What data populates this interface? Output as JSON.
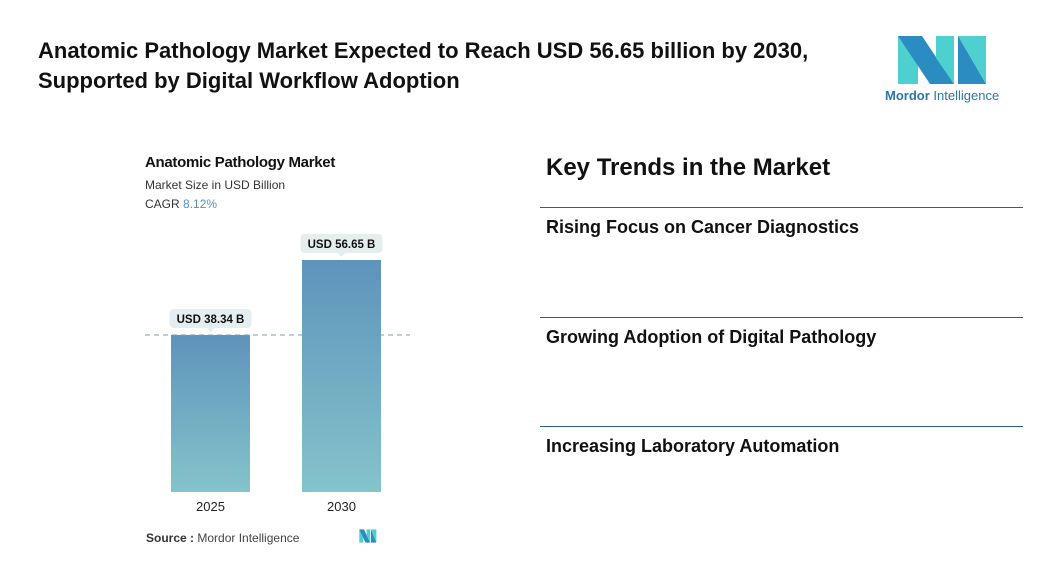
{
  "headline": "Anatomic Pathology Market Expected to Reach USD 56.65 billion by 2030, Supported by Digital Workflow Adoption",
  "logo": {
    "brand": "Mordor",
    "brand2": "Intelligence",
    "colors": [
      "#2a8cc0",
      "#4ecfd0"
    ]
  },
  "chart_data": {
    "type": "bar",
    "title": "Anatomic Pathology Market",
    "subtitle": "Market Size in USD Billion",
    "cagr_label": "CAGR",
    "cagr_value": "8.12%",
    "categories": [
      "2025",
      "2030"
    ],
    "values": [
      38.34,
      56.65
    ],
    "data_labels": [
      "USD 38.34 B",
      "USD 56.65 B"
    ],
    "ylim": [
      0,
      56.65
    ],
    "grid": false,
    "bar_colors": {
      "top": "#5e93bb",
      "bottom": "#84c4cb"
    }
  },
  "source": {
    "label": "Source :",
    "value": "Mordor Intelligence"
  },
  "trends": {
    "title": "Key Trends in the Market",
    "items": [
      "Rising Focus on Cancer Diagnostics",
      "Growing Adoption of Digital Pathology",
      "Increasing Laboratory Automation"
    ]
  }
}
